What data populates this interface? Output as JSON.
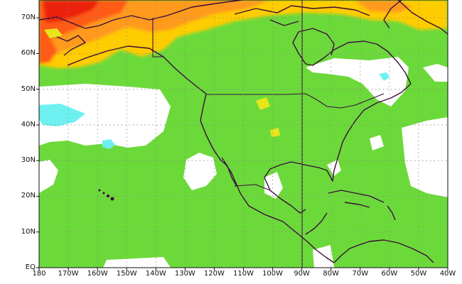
{
  "map": {
    "projection": "cylindrical equidistant",
    "lat_range": [
      0,
      75
    ],
    "lon_range": [
      -180,
      -40
    ],
    "colors": {
      "background": "#ffffff",
      "green": "#6cd93a",
      "yellow": "#e6e61a",
      "gold": "#ffcc00",
      "orange": "#ff9a1a",
      "red_orange": "#ff5a14",
      "red": "#ec2010",
      "cyan": "#6ef0f0",
      "coastline": "#3a0d3a",
      "grid": "#888888"
    },
    "lat_labels": [
      "EQ",
      "10N",
      "20N",
      "30N",
      "40N",
      "50N",
      "60N",
      "70N"
    ],
    "lat_values": [
      0,
      10,
      20,
      30,
      40,
      50,
      60,
      70
    ],
    "lon_labels": [
      "180",
      "170W",
      "160W",
      "150W",
      "140W",
      "130W",
      "120W",
      "110W",
      "100W",
      "90W",
      "80W",
      "70W",
      "60W",
      "50W",
      "40W"
    ],
    "lon_values": [
      -180,
      -170,
      -160,
      -150,
      -140,
      -130,
      -120,
      -110,
      -100,
      -90,
      -80,
      -70,
      -60,
      -50,
      -40
    ]
  }
}
